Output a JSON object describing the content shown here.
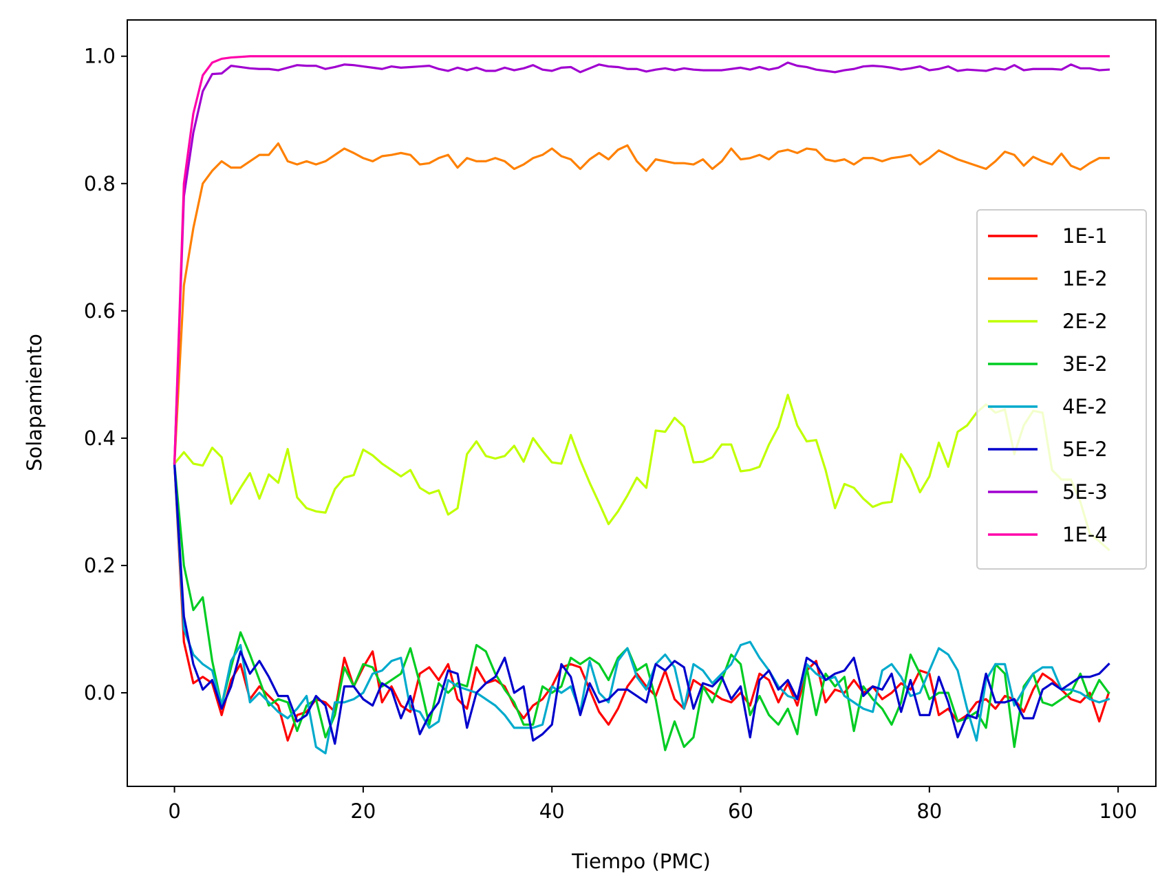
{
  "chart_data": {
    "type": "line",
    "title": "",
    "xlabel": "Tiempo (PMC)",
    "ylabel": "Solapamiento",
    "xlim": [
      -5,
      104
    ],
    "ylim": [
      -0.147,
      1.057
    ],
    "xticks": [
      0,
      20,
      40,
      60,
      80,
      100
    ],
    "yticks": [
      0.0,
      0.2,
      0.4,
      0.6,
      0.8,
      1.0
    ],
    "xtick_labels": [
      "0",
      "20",
      "40",
      "60",
      "80",
      "100"
    ],
    "ytick_labels": [
      "0.0",
      "0.2",
      "0.4",
      "0.6",
      "0.8",
      "1.0"
    ],
    "grid": false,
    "legend_position": "center-right",
    "x": {
      "start": 0,
      "end": 99,
      "step": 1
    },
    "series": [
      {
        "name": "1E-1",
        "color": "#ff0000",
        "values": [
          0.36,
          0.08,
          0.015,
          0.025,
          0.015,
          -0.035,
          0.02,
          0.045,
          -0.01,
          0.01,
          -0.005,
          -0.02,
          -0.075,
          -0.035,
          -0.03,
          -0.01,
          -0.015,
          -0.03,
          0.055,
          0.01,
          0.04,
          0.065,
          -0.015,
          0.01,
          -0.02,
          -0.03,
          0.03,
          0.04,
          0.02,
          0.045,
          -0.01,
          -0.025,
          0.04,
          0.015,
          0.02,
          0.01,
          -0.02,
          -0.04,
          -0.02,
          -0.01,
          0.01,
          0.04,
          0.045,
          0.04,
          0.005,
          -0.03,
          -0.05,
          -0.025,
          0.01,
          0.03,
          0.01,
          -0.005,
          0.035,
          -0.01,
          -0.025,
          0.02,
          0.01,
          0.0,
          -0.01,
          -0.015,
          0.0,
          -0.02,
          0.03,
          0.02,
          -0.015,
          0.015,
          -0.02,
          0.035,
          0.05,
          -0.015,
          0.005,
          0.0,
          0.02,
          0.0,
          0.01,
          -0.01,
          0.0,
          0.015,
          0.005,
          0.035,
          0.03,
          -0.035,
          -0.025,
          -0.045,
          -0.035,
          -0.015,
          -0.01,
          -0.025,
          -0.005,
          -0.01,
          -0.03,
          0.005,
          0.03,
          0.02,
          0.005,
          -0.01,
          -0.015,
          0.0,
          -0.045,
          0.0
        ]
      },
      {
        "name": "1E-2",
        "color": "#ff8000",
        "values": [
          0.36,
          0.64,
          0.73,
          0.8,
          0.82,
          0.835,
          0.825,
          0.825,
          0.835,
          0.845,
          0.845,
          0.863,
          0.835,
          0.83,
          0.835,
          0.83,
          0.835,
          0.845,
          0.855,
          0.848,
          0.84,
          0.835,
          0.843,
          0.845,
          0.848,
          0.845,
          0.83,
          0.832,
          0.84,
          0.845,
          0.825,
          0.84,
          0.835,
          0.835,
          0.84,
          0.835,
          0.823,
          0.83,
          0.84,
          0.845,
          0.855,
          0.843,
          0.838,
          0.823,
          0.838,
          0.848,
          0.838,
          0.853,
          0.86,
          0.835,
          0.82,
          0.838,
          0.835,
          0.832,
          0.832,
          0.83,
          0.838,
          0.823,
          0.835,
          0.855,
          0.838,
          0.84,
          0.845,
          0.838,
          0.85,
          0.853,
          0.848,
          0.855,
          0.853,
          0.838,
          0.835,
          0.838,
          0.83,
          0.84,
          0.84,
          0.835,
          0.84,
          0.842,
          0.845,
          0.83,
          0.84,
          0.852,
          0.845,
          0.838,
          0.833,
          0.828,
          0.823,
          0.835,
          0.85,
          0.845,
          0.828,
          0.842,
          0.835,
          0.83,
          0.847,
          0.828,
          0.822,
          0.832,
          0.84,
          0.84
        ]
      },
      {
        "name": "2E-2",
        "color": "#c0ff00",
        "values": [
          0.36,
          0.378,
          0.36,
          0.357,
          0.385,
          0.37,
          0.297,
          0.322,
          0.345,
          0.305,
          0.343,
          0.33,
          0.383,
          0.307,
          0.29,
          0.285,
          0.283,
          0.32,
          0.338,
          0.342,
          0.382,
          0.373,
          0.36,
          0.35,
          0.34,
          0.35,
          0.322,
          0.313,
          0.318,
          0.28,
          0.29,
          0.375,
          0.395,
          0.372,
          0.368,
          0.372,
          0.388,
          0.363,
          0.4,
          0.38,
          0.362,
          0.36,
          0.405,
          0.365,
          0.33,
          0.298,
          0.265,
          0.285,
          0.31,
          0.338,
          0.322,
          0.412,
          0.41,
          0.432,
          0.418,
          0.362,
          0.363,
          0.37,
          0.39,
          0.39,
          0.348,
          0.35,
          0.355,
          0.39,
          0.418,
          0.468,
          0.42,
          0.395,
          0.397,
          0.35,
          0.29,
          0.328,
          0.322,
          0.305,
          0.292,
          0.298,
          0.3,
          0.375,
          0.352,
          0.315,
          0.34,
          0.393,
          0.355,
          0.41,
          0.42,
          0.44,
          0.453,
          0.44,
          0.445,
          0.375,
          0.42,
          0.443,
          0.44,
          0.35,
          0.335,
          0.335,
          0.3,
          0.25,
          0.238,
          0.225
        ]
      },
      {
        "name": "3E-2",
        "color": "#00cc22",
        "values": [
          0.36,
          0.2,
          0.13,
          0.15,
          0.05,
          -0.02,
          0.04,
          0.095,
          0.06,
          0.02,
          -0.02,
          -0.01,
          -0.015,
          -0.06,
          -0.02,
          -0.01,
          -0.07,
          -0.035,
          0.04,
          0.01,
          0.045,
          0.04,
          0.01,
          0.02,
          0.03,
          0.07,
          0.015,
          -0.05,
          0.015,
          0.0,
          0.015,
          0.01,
          0.075,
          0.065,
          0.03,
          0.005,
          -0.015,
          -0.05,
          -0.05,
          0.01,
          0.0,
          0.01,
          0.055,
          0.045,
          0.055,
          0.045,
          0.02,
          0.055,
          0.07,
          0.035,
          0.045,
          -0.01,
          -0.09,
          -0.045,
          -0.085,
          -0.07,
          0.01,
          -0.015,
          0.02,
          0.06,
          0.045,
          -0.035,
          -0.005,
          -0.035,
          -0.05,
          -0.025,
          -0.065,
          0.04,
          -0.035,
          0.03,
          0.01,
          0.025,
          -0.06,
          0.01,
          -0.01,
          -0.025,
          -0.05,
          -0.015,
          0.06,
          0.03,
          -0.01,
          0.0,
          0.0,
          -0.045,
          -0.04,
          -0.03,
          -0.055,
          0.045,
          0.03,
          -0.085,
          0.01,
          0.03,
          -0.015,
          -0.02,
          -0.01,
          0.0,
          0.03,
          -0.01,
          0.02,
          0.0
        ]
      },
      {
        "name": "4E-2",
        "color": "#00aacc",
        "values": [
          0.36,
          0.1,
          0.06,
          0.045,
          0.035,
          -0.02,
          0.05,
          0.075,
          -0.015,
          0.0,
          -0.015,
          -0.03,
          -0.04,
          -0.025,
          -0.005,
          -0.085,
          -0.095,
          -0.015,
          -0.015,
          -0.01,
          0.0,
          0.03,
          0.035,
          0.05,
          0.055,
          -0.025,
          -0.03,
          -0.055,
          -0.045,
          0.02,
          0.01,
          0.005,
          0.0,
          -0.01,
          -0.02,
          -0.035,
          -0.055,
          -0.055,
          -0.055,
          -0.05,
          0.01,
          0.0,
          0.01,
          -0.03,
          0.05,
          0.0,
          -0.015,
          0.05,
          0.07,
          0.025,
          0.005,
          0.045,
          0.06,
          0.04,
          -0.025,
          0.045,
          0.035,
          0.015,
          0.03,
          0.045,
          0.075,
          0.08,
          0.055,
          0.035,
          0.01,
          -0.005,
          -0.01,
          0.045,
          0.03,
          0.02,
          0.025,
          -0.005,
          -0.015,
          -0.025,
          -0.03,
          0.035,
          0.045,
          0.025,
          -0.005,
          0.0,
          0.035,
          0.07,
          0.06,
          0.035,
          -0.025,
          -0.075,
          0.02,
          0.045,
          0.045,
          -0.02,
          0.005,
          0.03,
          0.04,
          0.04,
          0.005,
          0.005,
          0.0,
          -0.01,
          -0.015,
          -0.01
        ]
      },
      {
        "name": "5E-2",
        "color": "#0000cc",
        "values": [
          0.36,
          0.12,
          0.045,
          0.005,
          0.02,
          -0.025,
          0.01,
          0.065,
          0.03,
          0.05,
          0.025,
          -0.005,
          -0.005,
          -0.045,
          -0.035,
          -0.005,
          -0.02,
          -0.08,
          0.01,
          0.01,
          -0.01,
          -0.02,
          0.015,
          0.005,
          -0.04,
          -0.005,
          -0.065,
          -0.035,
          -0.015,
          0.035,
          0.03,
          -0.055,
          0.0,
          0.015,
          0.025,
          0.055,
          0.0,
          0.01,
          -0.075,
          -0.065,
          -0.05,
          0.045,
          0.025,
          -0.035,
          0.015,
          -0.015,
          -0.01,
          0.005,
          0.005,
          -0.005,
          -0.015,
          0.045,
          0.035,
          0.05,
          0.04,
          -0.025,
          0.015,
          0.01,
          0.025,
          -0.01,
          0.01,
          -0.07,
          0.02,
          0.035,
          0.005,
          0.02,
          -0.01,
          0.055,
          0.045,
          0.02,
          0.03,
          0.035,
          0.055,
          -0.005,
          0.01,
          0.005,
          0.03,
          -0.03,
          0.02,
          -0.035,
          -0.035,
          0.025,
          -0.015,
          -0.07,
          -0.035,
          -0.04,
          0.03,
          -0.015,
          -0.015,
          -0.01,
          -0.04,
          -0.04,
          0.005,
          0.015,
          0.005,
          0.015,
          0.025,
          0.025,
          0.03,
          0.045
        ]
      },
      {
        "name": "5E-3",
        "color": "#a000d0",
        "values": [
          0.36,
          0.78,
          0.88,
          0.945,
          0.972,
          0.973,
          0.985,
          0.983,
          0.981,
          0.98,
          0.98,
          0.978,
          0.982,
          0.986,
          0.985,
          0.985,
          0.98,
          0.983,
          0.987,
          0.986,
          0.984,
          0.982,
          0.98,
          0.984,
          0.982,
          0.983,
          0.984,
          0.985,
          0.98,
          0.977,
          0.982,
          0.978,
          0.982,
          0.977,
          0.977,
          0.982,
          0.978,
          0.981,
          0.986,
          0.979,
          0.977,
          0.982,
          0.983,
          0.975,
          0.981,
          0.987,
          0.984,
          0.983,
          0.98,
          0.98,
          0.976,
          0.979,
          0.981,
          0.978,
          0.981,
          0.979,
          0.978,
          0.978,
          0.978,
          0.98,
          0.982,
          0.979,
          0.983,
          0.979,
          0.982,
          0.99,
          0.985,
          0.983,
          0.979,
          0.977,
          0.975,
          0.978,
          0.98,
          0.984,
          0.985,
          0.984,
          0.982,
          0.979,
          0.981,
          0.984,
          0.978,
          0.98,
          0.984,
          0.977,
          0.979,
          0.978,
          0.977,
          0.981,
          0.979,
          0.986,
          0.978,
          0.98,
          0.98,
          0.98,
          0.979,
          0.987,
          0.981,
          0.981,
          0.978,
          0.979
        ]
      },
      {
        "name": "1E-4",
        "color": "#ff00aa",
        "values": [
          0.36,
          0.8,
          0.91,
          0.97,
          0.99,
          0.996,
          0.998,
          0.999,
          1.0,
          1.0,
          1.0,
          1.0,
          1.0,
          1.0,
          1.0,
          1.0,
          1.0,
          1.0,
          1.0,
          1.0,
          1.0,
          1.0,
          1.0,
          1.0,
          1.0,
          1.0,
          1.0,
          1.0,
          1.0,
          1.0,
          1.0,
          1.0,
          1.0,
          1.0,
          1.0,
          1.0,
          1.0,
          1.0,
          1.0,
          1.0,
          1.0,
          1.0,
          1.0,
          1.0,
          1.0,
          1.0,
          1.0,
          1.0,
          1.0,
          1.0,
          1.0,
          1.0,
          1.0,
          1.0,
          1.0,
          1.0,
          1.0,
          1.0,
          1.0,
          1.0,
          1.0,
          1.0,
          1.0,
          1.0,
          1.0,
          1.0,
          1.0,
          1.0,
          1.0,
          1.0,
          1.0,
          1.0,
          1.0,
          1.0,
          1.0,
          1.0,
          1.0,
          1.0,
          1.0,
          1.0,
          1.0,
          1.0,
          1.0,
          1.0,
          1.0,
          1.0,
          1.0,
          1.0,
          1.0,
          1.0,
          1.0,
          1.0,
          1.0,
          1.0,
          1.0,
          1.0,
          1.0,
          1.0,
          1.0,
          1.0
        ]
      }
    ]
  }
}
